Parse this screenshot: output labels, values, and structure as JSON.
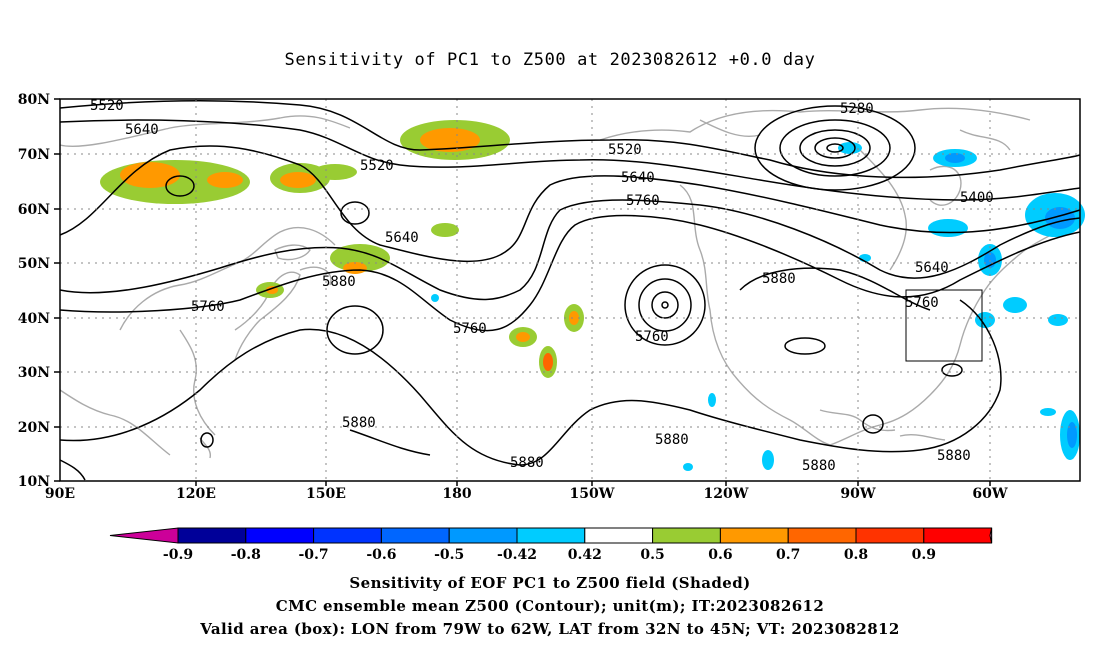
{
  "title": "Sensitivity of PC1 to Z500 at 2023082612 +0.0 day",
  "map": {
    "lat_labels": [
      "80N",
      "70N",
      "60N",
      "50N",
      "40N",
      "30N",
      "20N",
      "10N"
    ],
    "lon_labels": [
      "90E",
      "120E",
      "150E",
      "180",
      "150W",
      "120W",
      "90W",
      "60W"
    ],
    "contour_labels": [
      "5520",
      "5640",
      "5520",
      "5640",
      "5760",
      "5880",
      "5760",
      "5520",
      "5640",
      "5760",
      "5760",
      "5880",
      "5280",
      "5400",
      "5640",
      "5760",
      "5880",
      "5880",
      "5880",
      "5880",
      "5880"
    ],
    "valid_box": {
      "lon_from": "79W",
      "lon_to": "62W",
      "lat_from": "32N",
      "lat_to": "45N"
    }
  },
  "colorbar": {
    "labels": [
      "-0.9",
      "-0.8",
      "-0.7",
      "-0.6",
      "-0.5",
      "-0.42",
      "0.42",
      "0.5",
      "0.6",
      "0.7",
      "0.8",
      "0.9"
    ],
    "colors": [
      "#000099",
      "#0000ff",
      "#0033ff",
      "#0066ff",
      "#0099ff",
      "#00ccff",
      "#ffffff",
      "#99cc33",
      "#ff9900",
      "#ff6600",
      "#ff3300",
      "#ff0000"
    ],
    "low_end_color": "#cc0099",
    "high_end_color": "#ff99cc"
  },
  "footer": {
    "line1": "Sensitivity of EOF PC1 to Z500 field (Shaded)",
    "line2": "CMC ensemble mean Z500 (Contour); unit(m); IT:2023082612",
    "line3": "Valid area (box): LON from 79W to 62W, LAT from 32N to 45N; VT: 2023082812"
  }
}
